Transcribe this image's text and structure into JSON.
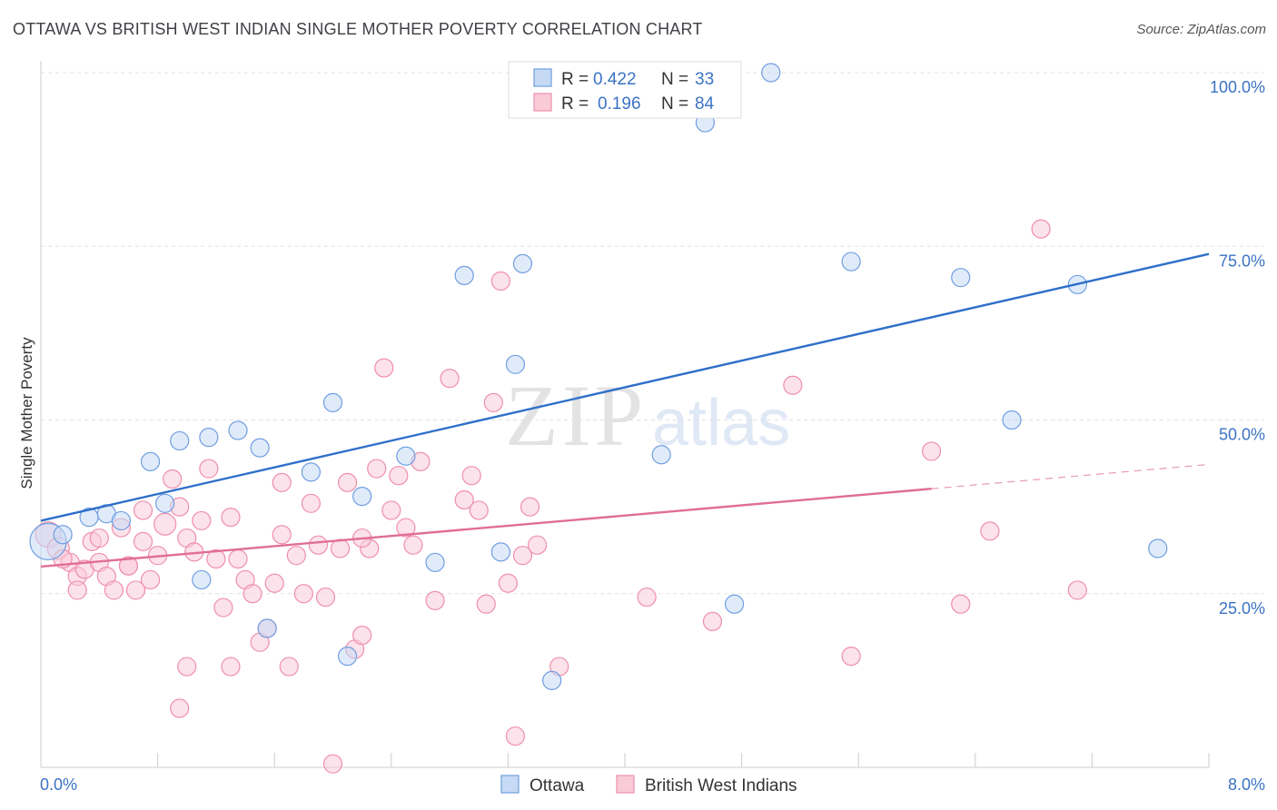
{
  "header": {
    "title": "OTTAWA VS BRITISH WEST INDIAN SINGLE MOTHER POVERTY CORRELATION CHART",
    "source": "Source: ZipAtlas.com"
  },
  "watermark": {
    "zip": "ZIP",
    "atlas": "atlas"
  },
  "legend_top": {
    "rows": [
      {
        "r_label": "R =",
        "r_value": "0.422",
        "n_label": "N =",
        "n_value": "33"
      },
      {
        "r_label": "R =",
        "r_value": "0.196",
        "n_label": "N =",
        "n_value": "84"
      }
    ]
  },
  "legend_bottom": {
    "items": [
      "Ottawa",
      "British West Indians"
    ]
  },
  "chart_data": {
    "type": "scatter",
    "title": "OTTAWA VS BRITISH WEST INDIAN SINGLE MOTHER POVERTY CORRELATION CHART",
    "xlabel": "",
    "ylabel": "Single Mother Poverty",
    "xlim": [
      0,
      8
    ],
    "ylim": [
      0,
      100
    ],
    "x_ticks_labeled": [
      "0.0%",
      "8.0%"
    ],
    "y_ticks": [
      25,
      50,
      75,
      100
    ],
    "y_tick_labels": [
      "25.0%",
      "50.0%",
      "75.0%",
      "100.0%"
    ],
    "colors": {
      "ottawa": "#6f9ee0",
      "bwi": "#ee8fab",
      "ottawa_line": "#2f6fca",
      "bwi_line": "#e06e96"
    },
    "series": [
      {
        "name": "Ottawa",
        "r": 0.422,
        "n": 33,
        "trend": {
          "x0": 0.0,
          "y0": 35.5,
          "x1": 8.0,
          "y1": 73.9
        },
        "points": [
          [
            0.05,
            32.5,
            20
          ],
          [
            0.15,
            33.5,
            10
          ],
          [
            0.33,
            36.0,
            10
          ],
          [
            0.45,
            36.5,
            10
          ],
          [
            0.55,
            35.5,
            10
          ],
          [
            0.75,
            44.0,
            10
          ],
          [
            0.95,
            47.0,
            10
          ],
          [
            1.15,
            47.5,
            10
          ],
          [
            1.35,
            48.5,
            10
          ],
          [
            1.5,
            46.0,
            10
          ],
          [
            0.85,
            38.0,
            10
          ],
          [
            1.1,
            27.0,
            10
          ],
          [
            1.55,
            20.0,
            10
          ],
          [
            1.85,
            42.5,
            10
          ],
          [
            2.0,
            52.5,
            10
          ],
          [
            2.2,
            39.0,
            10
          ],
          [
            2.1,
            16.0,
            10
          ],
          [
            2.5,
            44.8,
            10
          ],
          [
            2.7,
            29.5,
            10
          ],
          [
            2.9,
            70.8,
            10
          ],
          [
            3.3,
            72.5,
            10
          ],
          [
            3.25,
            58.0,
            10
          ],
          [
            3.15,
            31.0,
            10
          ],
          [
            3.5,
            12.5,
            10
          ],
          [
            4.25,
            45.0,
            10
          ],
          [
            4.55,
            92.8,
            10
          ],
          [
            5.0,
            100.0,
            10
          ],
          [
            4.75,
            23.5,
            10
          ],
          [
            5.55,
            72.8,
            10
          ],
          [
            6.3,
            70.5,
            10
          ],
          [
            6.65,
            50.0,
            10
          ],
          [
            7.1,
            69.5,
            10
          ],
          [
            7.65,
            31.5,
            10
          ]
        ]
      },
      {
        "name": "British West Indians",
        "r": 0.196,
        "n": 84,
        "trend": {
          "x0": 0.0,
          "y0": 28.9,
          "x1": 6.1,
          "y1": 40.1
        },
        "trend_dashed": {
          "x0": 6.1,
          "y0": 40.1,
          "x1": 8.0,
          "y1": 43.6
        },
        "points": [
          [
            0.05,
            33.5,
            14
          ],
          [
            0.12,
            31.5,
            12
          ],
          [
            0.2,
            29.5,
            10
          ],
          [
            0.25,
            27.5,
            10
          ],
          [
            0.3,
            28.5,
            10
          ],
          [
            0.35,
            32.5,
            10
          ],
          [
            0.4,
            29.5,
            10
          ],
          [
            0.45,
            27.5,
            10
          ],
          [
            0.5,
            25.5,
            10
          ],
          [
            0.55,
            34.5,
            10
          ],
          [
            0.6,
            29.0,
            10
          ],
          [
            0.65,
            25.5,
            10
          ],
          [
            0.7,
            32.5,
            10
          ],
          [
            0.75,
            27.0,
            10
          ],
          [
            0.8,
            30.5,
            10
          ],
          [
            0.85,
            35.0,
            12
          ],
          [
            0.9,
            41.5,
            10
          ],
          [
            0.95,
            37.5,
            10
          ],
          [
            1.0,
            33.0,
            10
          ],
          [
            1.05,
            31.0,
            10
          ],
          [
            1.1,
            35.5,
            10
          ],
          [
            1.15,
            43.0,
            10
          ],
          [
            1.2,
            30.0,
            10
          ],
          [
            1.25,
            23.0,
            10
          ],
          [
            1.3,
            14.5,
            10
          ],
          [
            1.35,
            30.0,
            10
          ],
          [
            1.4,
            27.0,
            10
          ],
          [
            1.45,
            25.0,
            10
          ],
          [
            1.5,
            18.0,
            10
          ],
          [
            1.55,
            20.0,
            10
          ],
          [
            1.6,
            26.5,
            10
          ],
          [
            1.65,
            33.5,
            10
          ],
          [
            1.7,
            14.5,
            10
          ],
          [
            1.75,
            30.5,
            10
          ],
          [
            1.8,
            25.0,
            10
          ],
          [
            1.85,
            38.0,
            10
          ],
          [
            1.9,
            32.0,
            10
          ],
          [
            1.95,
            24.5,
            10
          ],
          [
            2.0,
            0.5,
            10
          ],
          [
            2.05,
            31.5,
            10
          ],
          [
            2.1,
            41.0,
            10
          ],
          [
            2.15,
            17.0,
            10
          ],
          [
            2.2,
            19.0,
            10
          ],
          [
            2.25,
            31.5,
            10
          ],
          [
            2.3,
            43.0,
            10
          ],
          [
            2.35,
            57.5,
            10
          ],
          [
            2.4,
            37.0,
            10
          ],
          [
            2.45,
            42.0,
            10
          ],
          [
            2.5,
            34.5,
            10
          ],
          [
            2.55,
            32.0,
            10
          ],
          [
            2.6,
            44.0,
            10
          ],
          [
            2.7,
            24.0,
            10
          ],
          [
            2.8,
            56.0,
            10
          ],
          [
            2.9,
            38.5,
            10
          ],
          [
            2.95,
            42.0,
            10
          ],
          [
            3.0,
            37.0,
            10
          ],
          [
            3.05,
            23.5,
            10
          ],
          [
            3.1,
            52.5,
            10
          ],
          [
            3.15,
            70.0,
            10
          ],
          [
            3.2,
            26.5,
            10
          ],
          [
            3.25,
            4.5,
            10
          ],
          [
            3.3,
            30.5,
            10
          ],
          [
            3.35,
            37.5,
            10
          ],
          [
            3.4,
            32.0,
            10
          ],
          [
            3.55,
            14.5,
            10
          ],
          [
            0.95,
            8.5,
            10
          ],
          [
            1.0,
            14.5,
            10
          ],
          [
            1.3,
            36.0,
            10
          ],
          [
            0.7,
            37.0,
            10
          ],
          [
            0.4,
            33.0,
            10
          ],
          [
            0.15,
            30.0,
            10
          ],
          [
            0.6,
            29.0,
            10
          ],
          [
            4.15,
            24.5,
            10
          ],
          [
            4.6,
            21.0,
            10
          ],
          [
            5.15,
            55.0,
            10
          ],
          [
            5.55,
            16.0,
            10
          ],
          [
            6.1,
            45.5,
            10
          ],
          [
            6.3,
            23.5,
            10
          ],
          [
            6.5,
            34.0,
            10
          ],
          [
            6.85,
            77.5,
            10
          ],
          [
            7.1,
            25.5,
            10
          ],
          [
            1.65,
            41.0,
            10
          ],
          [
            2.2,
            33.0,
            10
          ],
          [
            0.25,
            25.5,
            10
          ]
        ]
      }
    ]
  }
}
